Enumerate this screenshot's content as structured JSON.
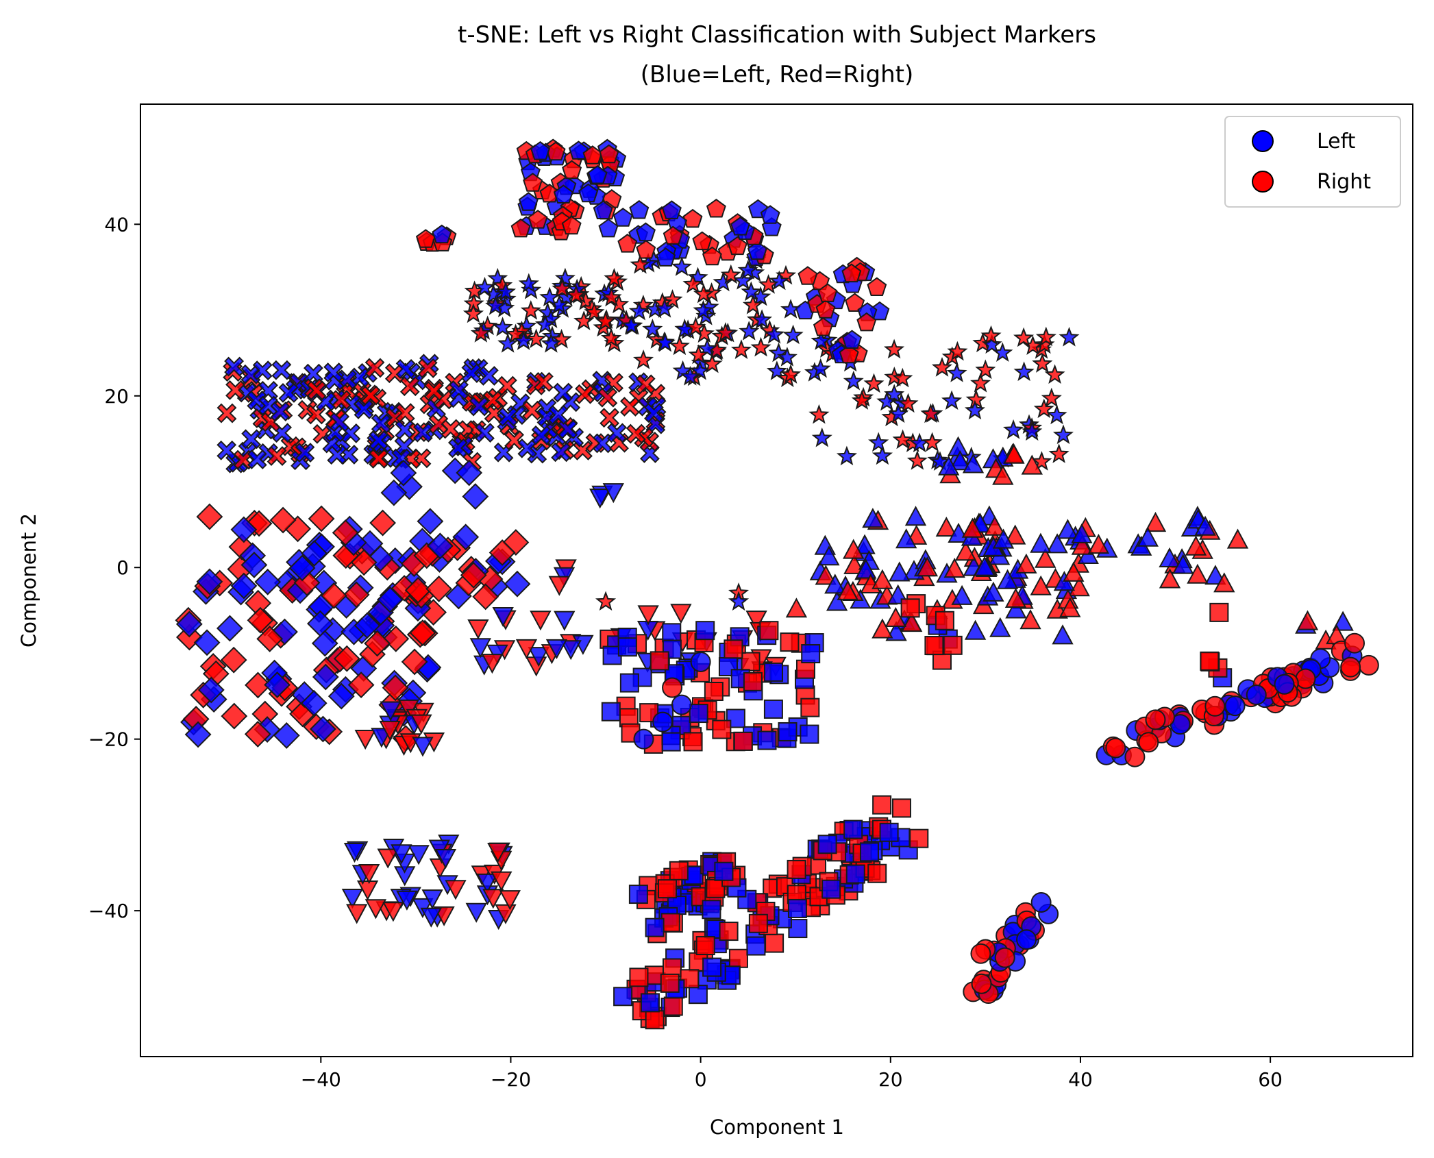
{
  "chart_data": {
    "type": "scatter",
    "title_lines": [
      "t-SNE: Left vs Right Classification with Subject Markers",
      "(Blue=Left, Red=Right)"
    ],
    "xlabel": "Component 1",
    "ylabel": "Component 2",
    "xlim": [
      -59,
      75
    ],
    "ylim": [
      -57,
      54
    ],
    "xticks": [
      -40,
      -20,
      0,
      20,
      40,
      60
    ],
    "yticks": [
      -40,
      -20,
      0,
      20,
      40
    ],
    "xtick_labels": [
      "−40",
      "−20",
      "0",
      "20",
      "40",
      "60"
    ],
    "ytick_labels": [
      "−40",
      "−20",
      "0",
      "20",
      "40"
    ],
    "grid": false,
    "legend_placement": "top-right",
    "legend": [
      {
        "label": "Left",
        "color": "#0000ff"
      },
      {
        "label": "Right",
        "color": "#ff0000"
      }
    ],
    "colors": {
      "Left": "#0000ff",
      "Right": "#ff0000",
      "edge": "#1a1a1a"
    },
    "marker_types": [
      "circle",
      "square",
      "diamond",
      "triangle-up",
      "triangle-down",
      "pentagon",
      "star",
      "x"
    ],
    "clusters": [
      {
        "marker": "x",
        "x": [
          -50,
          -22
        ],
        "y": [
          12,
          24
        ],
        "n": 130
      },
      {
        "marker": "x",
        "x": [
          -22,
          -4
        ],
        "y": [
          13,
          22
        ],
        "n": 60
      },
      {
        "marker": "star",
        "x": [
          -24,
          -8
        ],
        "y": [
          26,
          34
        ],
        "n": 60
      },
      {
        "marker": "star",
        "x": [
          -8,
          10
        ],
        "y": [
          22,
          36
        ],
        "n": 70
      },
      {
        "marker": "star",
        "x": [
          12,
          39
        ],
        "y": [
          12,
          27
        ],
        "n": 70
      },
      {
        "marker": "pentagon",
        "x": [
          -19,
          -8
        ],
        "y": [
          39,
          49
        ],
        "n": 55
      },
      {
        "marker": "pentagon",
        "x": [
          -8,
          8
        ],
        "y": [
          36,
          42
        ],
        "n": 35
      },
      {
        "marker": "pentagon",
        "x": [
          -29,
          -25
        ],
        "y": [
          36,
          39
        ],
        "n": 6
      },
      {
        "marker": "pentagon",
        "x": [
          11,
          19
        ],
        "y": [
          24,
          35
        ],
        "n": 28
      },
      {
        "marker": "diamond",
        "x": [
          -54,
          -28
        ],
        "y": [
          -20,
          6
        ],
        "n": 130
      },
      {
        "marker": "diamond",
        "x": [
          -33,
          -19
        ],
        "y": [
          -4,
          4
        ],
        "n": 30
      },
      {
        "marker": "diamond",
        "x": [
          -34,
          -22
        ],
        "y": [
          8,
          12
        ],
        "n": 6
      },
      {
        "marker": "triangle-down",
        "x": [
          -24,
          8
        ],
        "y": [
          -12,
          -5
        ],
        "n": 35
      },
      {
        "marker": "triangle-down",
        "x": [
          -36,
          -28
        ],
        "y": [
          -21,
          -16
        ],
        "n": 18
      },
      {
        "marker": "triangle-down",
        "x": [
          -37,
          -20
        ],
        "y": [
          -41,
          -32
        ],
        "n": 45
      },
      {
        "marker": "triangle-down",
        "x": [
          -15,
          -14
        ],
        "y": [
          -2,
          1
        ],
        "n": 3
      },
      {
        "marker": "triangle-down",
        "x": [
          -11,
          -9
        ],
        "y": [
          8,
          9
        ],
        "n": 3
      },
      {
        "marker": "triangle-up",
        "x": [
          10,
          40
        ],
        "y": [
          -8,
          6
        ],
        "n": 85
      },
      {
        "marker": "triangle-up",
        "x": [
          28,
          57
        ],
        "y": [
          -2,
          6
        ],
        "n": 45
      },
      {
        "marker": "triangle-up",
        "x": [
          25,
          36
        ],
        "y": [
          10,
          14
        ],
        "n": 14
      },
      {
        "marker": "triangle-up",
        "x": [
          63,
          68
        ],
        "y": [
          -9,
          -6
        ],
        "n": 5
      },
      {
        "marker": "square",
        "x": [
          -10,
          12
        ],
        "y": [
          -21,
          -7
        ],
        "n": 80
      },
      {
        "marker": "square",
        "x": [
          22,
          27
        ],
        "y": [
          -11,
          -4
        ],
        "n": 10
      },
      {
        "marker": "square",
        "x": [
          53,
          55
        ],
        "y": [
          -15,
          -5
        ],
        "n": 5
      }
    ],
    "linear_clusters": [
      {
        "marker": "square",
        "from": [
          -7,
          -52
        ],
        "to": [
          22,
          -29
        ],
        "spread": 3.2,
        "n": 110
      },
      {
        "marker": "square",
        "from": [
          -6,
          -40
        ],
        "to": [
          4,
          -36
        ],
        "spread": 3.0,
        "n": 50
      },
      {
        "marker": "circle",
        "from": [
          42,
          -22
        ],
        "to": [
          70,
          -10
        ],
        "spread": 1.6,
        "n": 70
      },
      {
        "marker": "circle",
        "from": [
          29,
          -50
        ],
        "to": [
          36,
          -39
        ],
        "spread": 1.3,
        "n": 30
      }
    ],
    "extra_points": [
      {
        "marker": "circle",
        "x": 30,
        "y": -44.5
      },
      {
        "marker": "circle",
        "x": 29.5,
        "y": -45
      },
      {
        "marker": "circle",
        "x": -6,
        "y": -20
      },
      {
        "marker": "circle",
        "x": -4,
        "y": -18
      },
      {
        "marker": "circle",
        "x": -2,
        "y": -16
      },
      {
        "marker": "circle",
        "x": 0,
        "y": -11
      },
      {
        "marker": "circle",
        "x": -3,
        "y": -14
      },
      {
        "marker": "star",
        "x": -10,
        "y": -4
      },
      {
        "marker": "star",
        "x": 4,
        "y": -3
      },
      {
        "marker": "star",
        "x": 4,
        "y": -4
      }
    ]
  }
}
